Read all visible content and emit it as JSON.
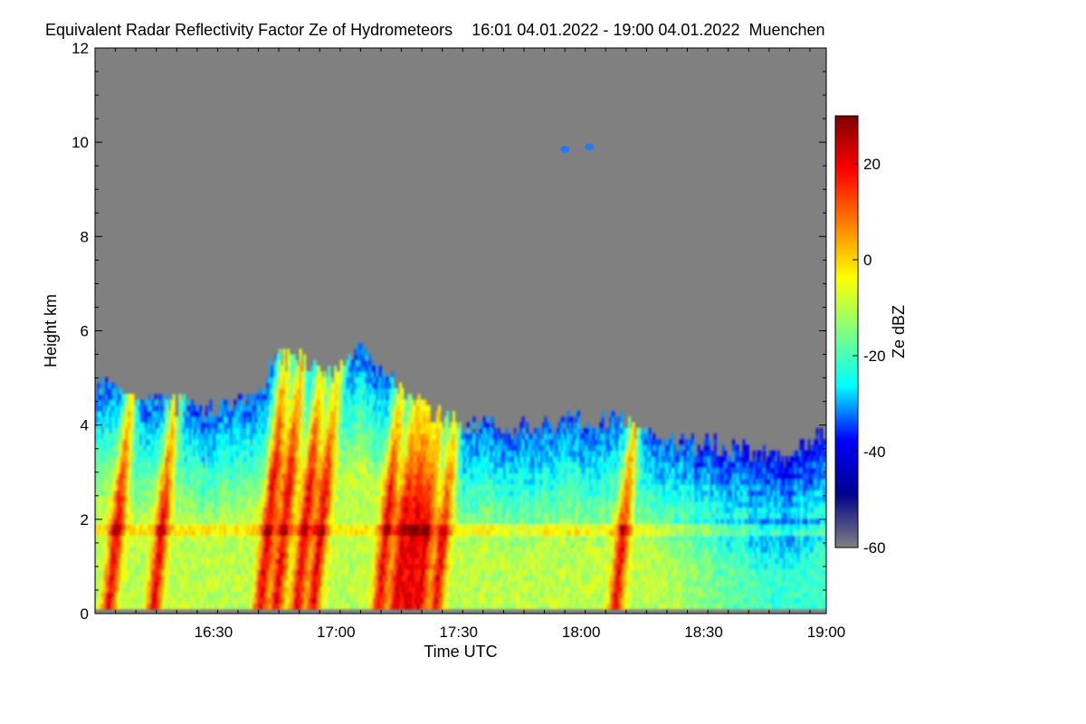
{
  "chart_data": {
    "type": "heatmap",
    "title": "Equivalent Radar Reflectivity Factor Ze of Hydrometeors",
    "time_range_text": "16:01 04.01.2022 - 19:00 04.01.2022",
    "location": "Muenchen",
    "xlabel": "Time UTC",
    "ylabel": "Height km",
    "colorbar_label": "Ze dBZ",
    "xlim": [
      "16:01",
      "19:00"
    ],
    "ylim": [
      0,
      12
    ],
    "x_ticks": [
      "16:30",
      "17:00",
      "17:30",
      "18:00",
      "18:30",
      "19:00"
    ],
    "y_ticks": [
      0,
      2,
      4,
      6,
      8,
      10,
      12
    ],
    "colorbar_range": [
      -60,
      30
    ],
    "colorbar_ticks": [
      20,
      0,
      -20,
      -40,
      -60
    ],
    "colormap": [
      "#808080",
      "#00008f",
      "#0000ff",
      "#00ffff",
      "#7fff7f",
      "#ffff00",
      "#ff7f00",
      "#ff0000",
      "#7f0000"
    ],
    "background_color": "#808080",
    "echo_top_km": [
      [
        "16:01",
        4.8
      ],
      [
        "16:10",
        4.6
      ],
      [
        "16:20",
        4.4
      ],
      [
        "16:30",
        4.2
      ],
      [
        "16:40",
        4.6
      ],
      [
        "16:45",
        5.4
      ],
      [
        "16:55",
        5.2
      ],
      [
        "17:00",
        5.0
      ],
      [
        "17:05",
        5.5
      ],
      [
        "17:15",
        4.8
      ],
      [
        "17:25",
        4.1
      ],
      [
        "17:30",
        4.0
      ],
      [
        "17:40",
        3.8
      ],
      [
        "17:50",
        3.9
      ],
      [
        "18:00",
        4.0
      ],
      [
        "18:10",
        4.0
      ],
      [
        "18:20",
        3.6
      ],
      [
        "18:30",
        3.5
      ],
      [
        "18:40",
        3.4
      ],
      [
        "18:50",
        3.3
      ],
      [
        "19:00",
        3.7
      ]
    ],
    "high_echoes": [
      {
        "time": "17:56",
        "height_km": 9.85
      },
      {
        "time": "18:02",
        "height_km": 9.9
      }
    ],
    "bright_band_km": 1.7,
    "strong_echo_times": [
      "16:04",
      "16:15",
      "16:41",
      "16:45",
      "16:50",
      "16:54",
      "17:10",
      "17:14",
      "17:17",
      "17:20",
      "17:24",
      "18:08"
    ]
  }
}
